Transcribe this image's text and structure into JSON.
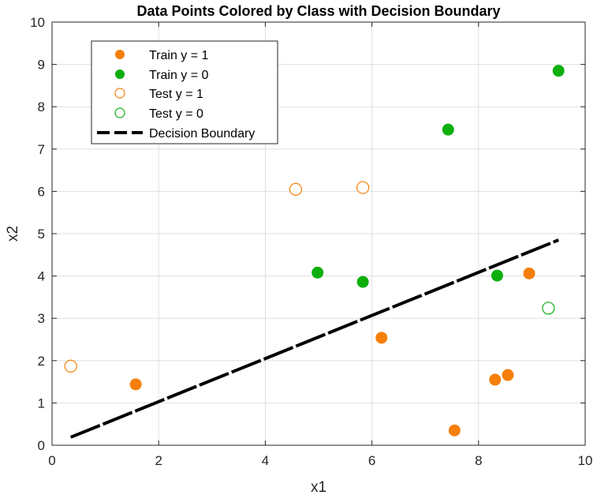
{
  "chart_data": {
    "type": "scatter",
    "title": "Data Points Colored by Class with Decision Boundary",
    "xlabel": "x1",
    "ylabel": "x2",
    "xlim": [
      0,
      10
    ],
    "ylim": [
      0,
      10
    ],
    "xticks": [
      0,
      2,
      4,
      6,
      8,
      10
    ],
    "yticks": [
      0,
      1,
      2,
      3,
      4,
      5,
      6,
      7,
      8,
      9,
      10
    ],
    "grid": true,
    "legend_position": "top-left",
    "colors": {
      "class1": "#F57F0A",
      "class0": "#0DAF0D",
      "boundary": "#000000"
    },
    "series": [
      {
        "name": "Train y = 1",
        "marker": "filled",
        "color": "#F57F0A",
        "points": [
          [
            1.57,
            1.44
          ],
          [
            6.18,
            2.54
          ],
          [
            7.55,
            0.35
          ],
          [
            8.31,
            1.55
          ],
          [
            8.55,
            1.66
          ],
          [
            8.95,
            4.06
          ]
        ]
      },
      {
        "name": "Train y = 0",
        "marker": "filled",
        "color": "#0DAF0D",
        "points": [
          [
            9.5,
            8.85
          ],
          [
            7.43,
            7.46
          ],
          [
            4.98,
            4.08
          ],
          [
            5.83,
            3.86
          ],
          [
            8.35,
            4.01
          ]
        ]
      },
      {
        "name": "Test y = 1",
        "marker": "open",
        "color": "#F57F0A",
        "points": [
          [
            4.57,
            6.05
          ],
          [
            5.83,
            6.09
          ],
          [
            0.35,
            1.87
          ]
        ]
      },
      {
        "name": "Test y = 0",
        "marker": "open",
        "color": "#0DAF0D",
        "points": [
          [
            9.31,
            3.24
          ]
        ]
      }
    ],
    "boundary": {
      "name": "Decision Boundary",
      "style": "dashed",
      "x": [
        0.35,
        9.5
      ],
      "y": [
        0.19,
        4.85
      ]
    }
  }
}
